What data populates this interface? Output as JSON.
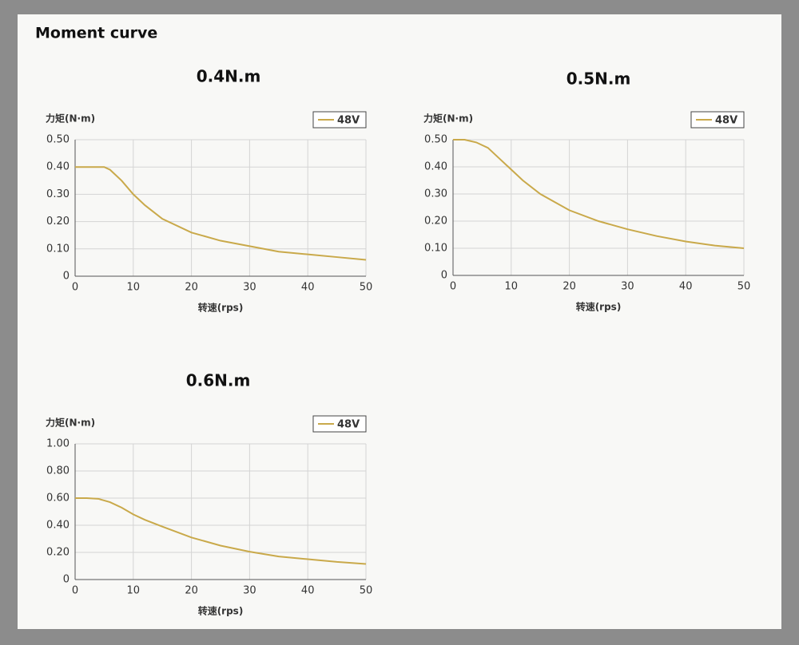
{
  "heading": "Moment curve",
  "chart_data": [
    {
      "type": "line",
      "title": "0.4N.m",
      "y_label": "力矩(N·m)",
      "x_label": "转速(rps)",
      "x": [
        0,
        2,
        4,
        5,
        6,
        8,
        10,
        12,
        15,
        20,
        25,
        30,
        35,
        40,
        45,
        50
      ],
      "series": [
        {
          "name": "48V",
          "color": "#c9a94a",
          "values": [
            0.4,
            0.4,
            0.4,
            0.4,
            0.39,
            0.35,
            0.3,
            0.26,
            0.21,
            0.16,
            0.13,
            0.11,
            0.09,
            0.08,
            0.07,
            0.06
          ]
        }
      ],
      "xlim": [
        0,
        50
      ],
      "xticks": [
        0,
        10,
        20,
        30,
        40,
        50
      ],
      "ylim": [
        0,
        0.5
      ],
      "yticks": [
        0,
        {
          "value": 0.1,
          "label": "0.10"
        },
        {
          "value": 0.2,
          "label": "0.20"
        },
        {
          "value": 0.3,
          "label": "0.30"
        },
        {
          "value": 0.4,
          "label": "0.40"
        },
        {
          "value": 0.5,
          "label": "0.50"
        }
      ],
      "grid": true,
      "legend": "top-right"
    },
    {
      "type": "line",
      "title": "0.5N.m",
      "y_label": "力矩(N·m)",
      "x_label": "转速(rps)",
      "x": [
        0,
        2,
        4,
        6,
        8,
        10,
        12,
        15,
        20,
        25,
        30,
        35,
        40,
        45,
        50
      ],
      "series": [
        {
          "name": "48V",
          "color": "#c9a94a",
          "values": [
            0.5,
            0.5,
            0.49,
            0.47,
            0.43,
            0.39,
            0.35,
            0.3,
            0.24,
            0.2,
            0.17,
            0.145,
            0.125,
            0.11,
            0.1
          ]
        }
      ],
      "xlim": [
        0,
        50
      ],
      "xticks": [
        0,
        10,
        20,
        30,
        40,
        50
      ],
      "ylim": [
        0,
        0.5
      ],
      "yticks": [
        0,
        {
          "value": 0.1,
          "label": "0.10"
        },
        {
          "value": 0.2,
          "label": "0.20"
        },
        {
          "value": 0.3,
          "label": "0.30"
        },
        {
          "value": 0.4,
          "label": "0.40"
        },
        {
          "value": 0.5,
          "label": "0.50"
        }
      ],
      "grid": true,
      "legend": "top-right"
    },
    {
      "type": "line",
      "title": "0.6N.m",
      "y_label": "力矩(N·m)",
      "x_label": "转速(rps)",
      "x": [
        0,
        2,
        4,
        6,
        8,
        10,
        12,
        15,
        20,
        25,
        30,
        35,
        40,
        45,
        50
      ],
      "series": [
        {
          "name": "48V",
          "color": "#c9a94a",
          "values": [
            0.6,
            0.6,
            0.595,
            0.57,
            0.53,
            0.48,
            0.44,
            0.39,
            0.31,
            0.25,
            0.205,
            0.17,
            0.15,
            0.13,
            0.115
          ]
        }
      ],
      "xlim": [
        0,
        50
      ],
      "xticks": [
        0,
        10,
        20,
        30,
        40,
        50
      ],
      "ylim": [
        0,
        1
      ],
      "yticks": [
        0,
        {
          "value": 0.2,
          "label": "0.20"
        },
        {
          "value": 0.4,
          "label": "0.40"
        },
        {
          "value": 0.6,
          "label": "0.60"
        },
        {
          "value": 0.8,
          "label": "0.80"
        },
        {
          "value": 1,
          "label": "1.00"
        }
      ],
      "grid": true,
      "legend": "top-right"
    }
  ]
}
